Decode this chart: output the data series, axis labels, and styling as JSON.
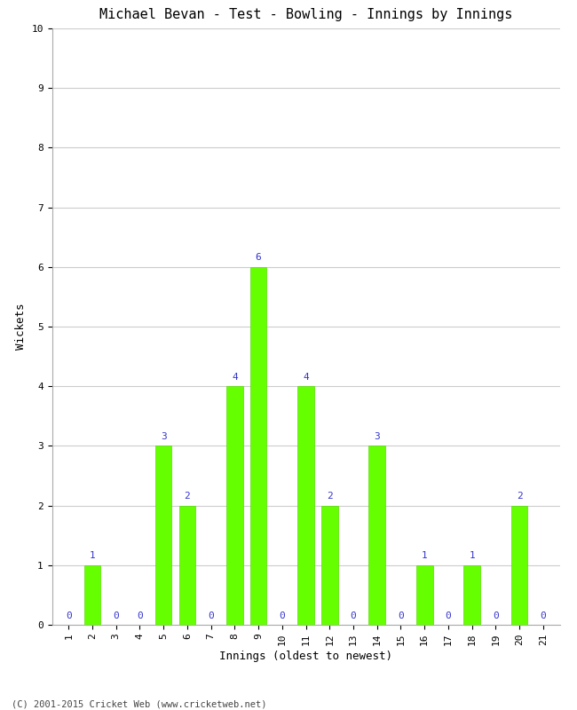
{
  "title": "Michael Bevan - Test - Bowling - Innings by Innings",
  "xlabel": "Innings (oldest to newest)",
  "ylabel": "Wickets",
  "innings": [
    1,
    2,
    3,
    4,
    5,
    6,
    7,
    8,
    9,
    10,
    11,
    12,
    13,
    14,
    15,
    16,
    17,
    18,
    19,
    20,
    21
  ],
  "wickets": [
    0,
    1,
    0,
    0,
    3,
    2,
    0,
    4,
    6,
    0,
    4,
    2,
    0,
    3,
    0,
    1,
    0,
    1,
    0,
    2,
    0
  ],
  "bar_color": "#66FF00",
  "bar_edge_color": "#55DD00",
  "label_color": "#3333CC",
  "title_fontsize": 11,
  "axis_label_fontsize": 9,
  "tick_fontsize": 8,
  "annotation_fontsize": 8,
  "ylim": [
    0,
    10
  ],
  "yticks": [
    0,
    1,
    2,
    3,
    4,
    5,
    6,
    7,
    8,
    9,
    10
  ],
  "background_color": "#ffffff",
  "grid_color": "#cccccc",
  "footer": "(C) 2001-2015 Cricket Web (www.cricketweb.net)"
}
